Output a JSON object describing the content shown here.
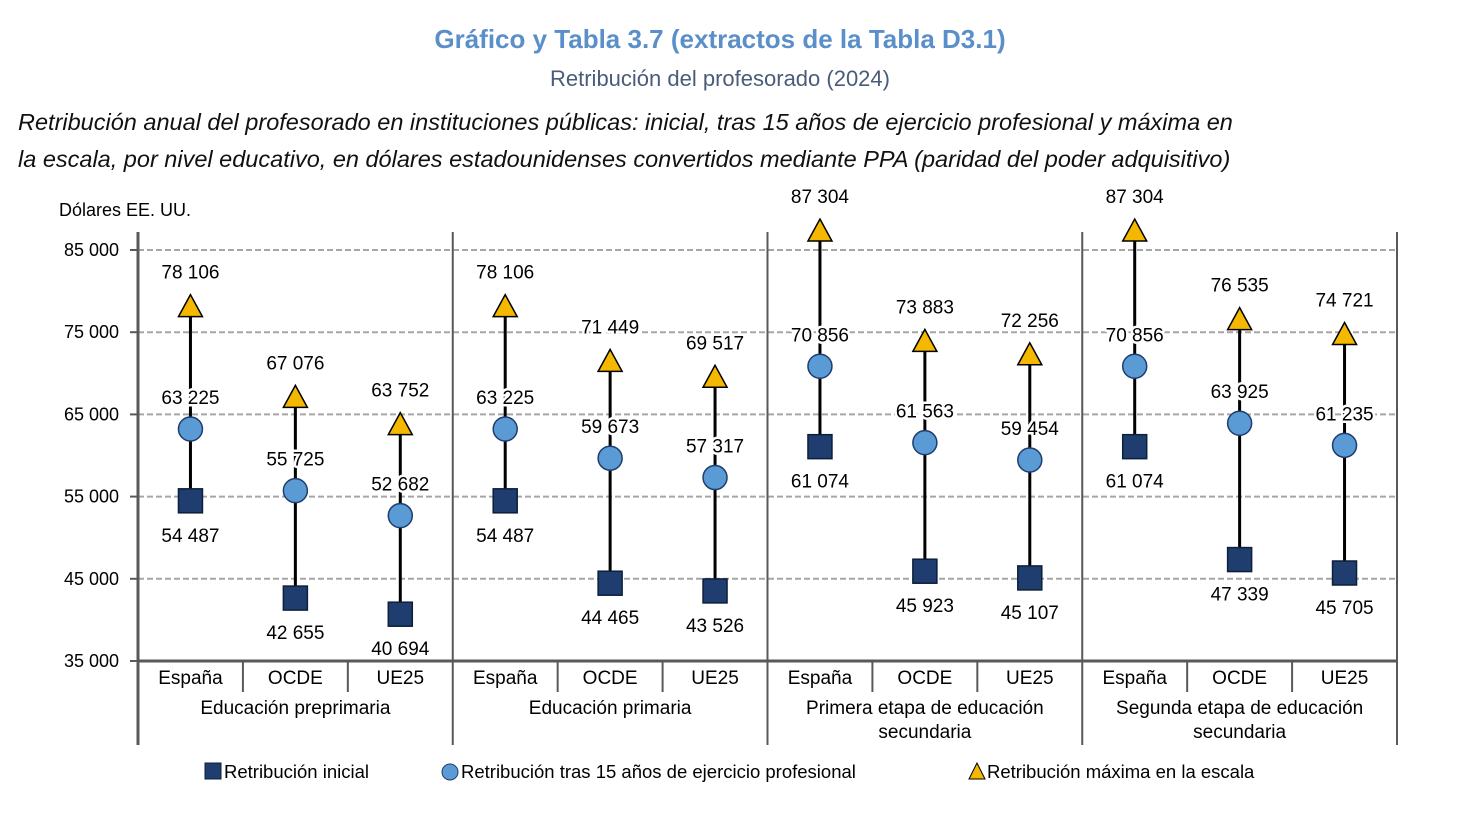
{
  "header": {
    "title": "Gráfico y Tabla 3.7 (extractos de la Tabla D3.1)",
    "subtitle": "Retribución del profesorado (2024)",
    "description_line1": "Retribución anual del profesorado en instituciones públicas: inicial, tras 15 años de ejercicio profesional y máxima en",
    "description_line2": "la escala, por nivel educativo, en dólares estadounidenses convertidos mediante PPA (paridad del poder adquisitivo)"
  },
  "chart_data": {
    "type": "scatter",
    "ylabel": "Dólares EE. UU.",
    "ylim": [
      35000,
      85000
    ],
    "yticks": [
      35000,
      45000,
      55000,
      65000,
      75000,
      85000
    ],
    "ytick_labels": [
      "35 000",
      "45 000",
      "55 000",
      "65 000",
      "75 000",
      "85 000"
    ],
    "grid": true,
    "legend_position": "bottom",
    "series": [
      {
        "key": "inicial",
        "name": "Retribución inicial",
        "marker": "square",
        "color": "#1f3d6e"
      },
      {
        "key": "quince",
        "name": "Retribución tras 15 años de ejercicio profesional",
        "marker": "circle",
        "color": "#5b9bd5"
      },
      {
        "key": "maxima",
        "name": "Retribución máxima en la escala",
        "marker": "triangle",
        "color": "#f5b800"
      }
    ],
    "groups": [
      {
        "name_lines": [
          "Educación preprimaria"
        ],
        "categories": [
          {
            "name": "España",
            "inicial": 54487,
            "quince": 63225,
            "maxima": 78106,
            "inicial_label": "54 487",
            "quince_label": "63 225",
            "maxima_label": "78 106"
          },
          {
            "name": "OCDE",
            "inicial": 42655,
            "quince": 55725,
            "maxima": 67076,
            "inicial_label": "42 655",
            "quince_label": "55 725",
            "maxima_label": "67 076"
          },
          {
            "name": "UE25",
            "inicial": 40694,
            "quince": 52682,
            "maxima": 63752,
            "inicial_label": "40 694",
            "quince_label": "52 682",
            "maxima_label": "63 752"
          }
        ]
      },
      {
        "name_lines": [
          "Educación primaria"
        ],
        "categories": [
          {
            "name": "España",
            "inicial": 54487,
            "quince": 63225,
            "maxima": 78106,
            "inicial_label": "54 487",
            "quince_label": "63 225",
            "maxima_label": "78 106"
          },
          {
            "name": "OCDE",
            "inicial": 44465,
            "quince": 59673,
            "maxima": 71449,
            "inicial_label": "44 465",
            "quince_label": "59 673",
            "maxima_label": "71 449"
          },
          {
            "name": "UE25",
            "inicial": 43526,
            "quince": 57317,
            "maxima": 69517,
            "inicial_label": "43 526",
            "quince_label": "57 317",
            "maxima_label": "69 517"
          }
        ]
      },
      {
        "name_lines": [
          "Primera etapa de educación",
          "secundaria"
        ],
        "categories": [
          {
            "name": "España",
            "inicial": 61074,
            "quince": 70856,
            "maxima": 87304,
            "inicial_label": "61 074",
            "quince_label": "70 856",
            "maxima_label": "87 304"
          },
          {
            "name": "OCDE",
            "inicial": 45923,
            "quince": 61563,
            "maxima": 73883,
            "inicial_label": "45 923",
            "quince_label": "61 563",
            "maxima_label": "73 883"
          },
          {
            "name": "UE25",
            "inicial": 45107,
            "quince": 59454,
            "maxima": 72256,
            "inicial_label": "45 107",
            "quince_label": "59 454",
            "maxima_label": "72 256"
          }
        ]
      },
      {
        "name_lines": [
          "Segunda etapa de educación",
          "secundaria"
        ],
        "categories": [
          {
            "name": "España",
            "inicial": 61074,
            "quince": 70856,
            "maxima": 87304,
            "inicial_label": "61 074",
            "quince_label": "70 856",
            "maxima_label": "87 304"
          },
          {
            "name": "OCDE",
            "inicial": 47339,
            "quince": 63925,
            "maxima": 76535,
            "inicial_label": "47 339",
            "quince_label": "63 925",
            "maxima_label": "76 535"
          },
          {
            "name": "UE25",
            "inicial": 45705,
            "quince": 61235,
            "maxima": 74721,
            "inicial_label": "45 705",
            "quince_label": "61 235",
            "maxima_label": "74 721"
          }
        ]
      }
    ]
  }
}
